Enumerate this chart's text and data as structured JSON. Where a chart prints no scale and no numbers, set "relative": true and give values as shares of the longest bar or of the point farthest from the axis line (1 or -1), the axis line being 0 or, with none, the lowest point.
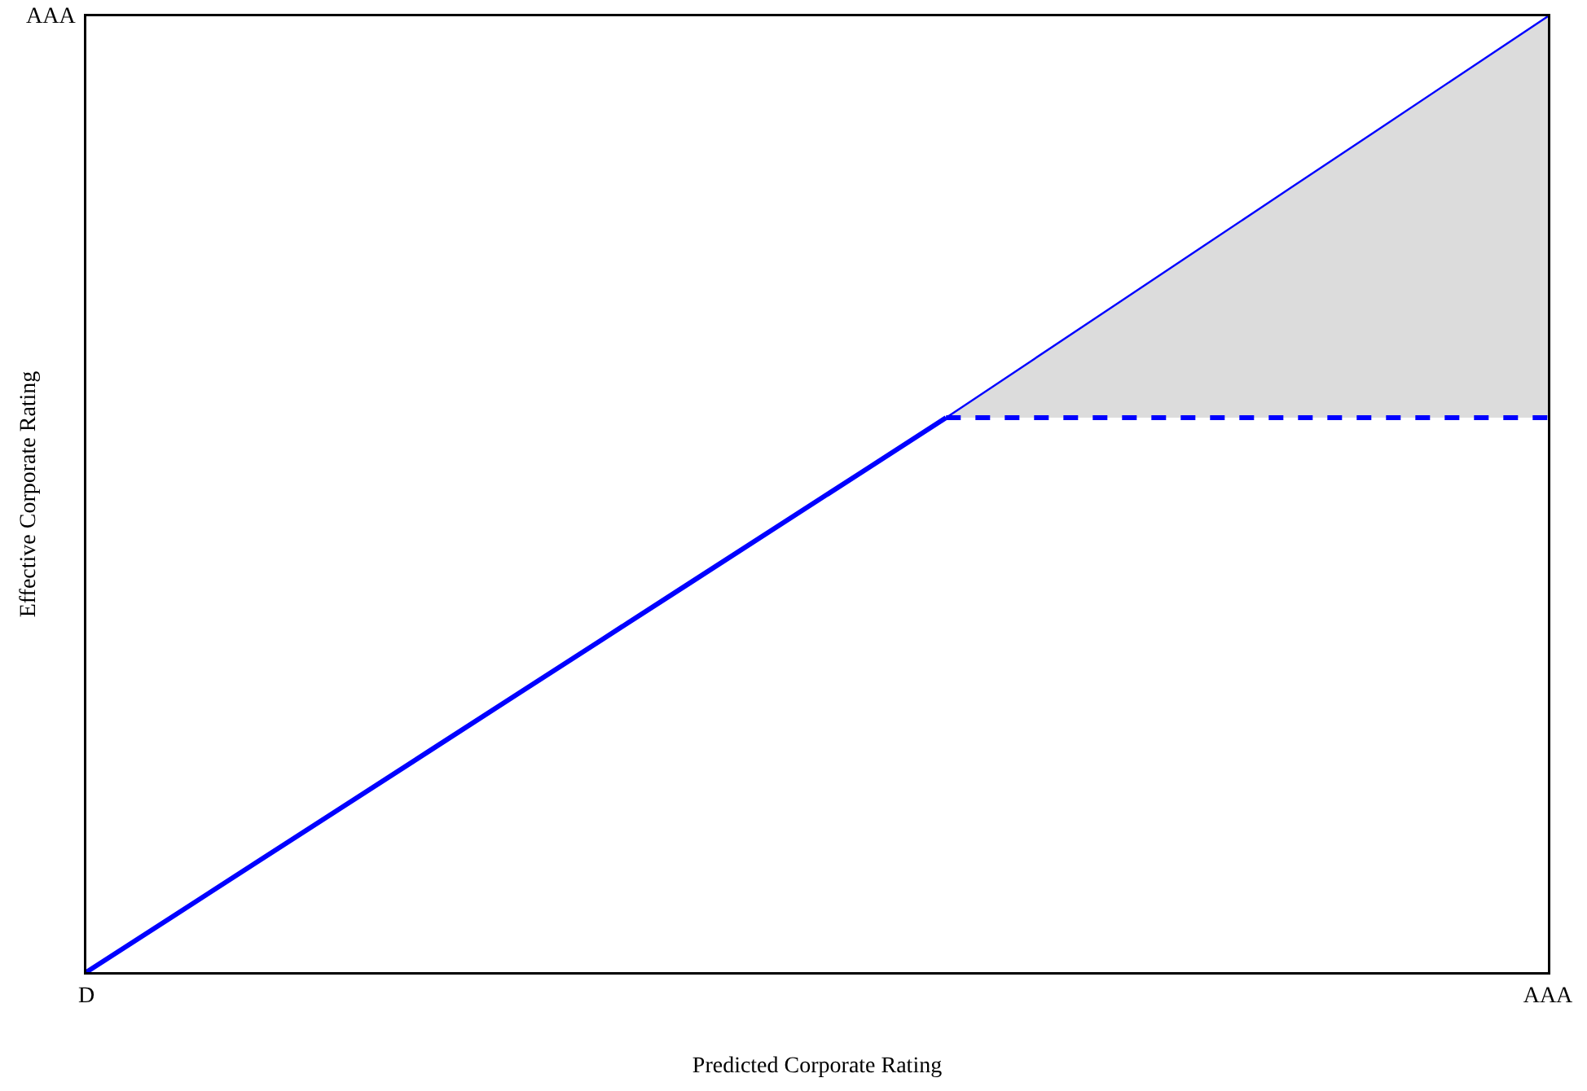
{
  "chart_data": {
    "type": "line",
    "relative": true,
    "xlabel": "Predicted Corporate Rating",
    "ylabel": "Effective Corporate Rating",
    "categories": [
      "D",
      null,
      null,
      null,
      null,
      null,
      null,
      null,
      null,
      null,
      null,
      null,
      null,
      null,
      null,
      null,
      null,
      "AAA"
    ],
    "annotations": [
      "AAA"
    ],
    "marker": "none",
    "series": [
      {
        "color": "#0000ff",
        "values": [
          0,
          0.058,
          0.116,
          0.174,
          0.232,
          0.29,
          0.348,
          0.406,
          0.464,
          0.522,
          0.58,
          null,
          null,
          null,
          null,
          null,
          null,
          null
        ],
        "line_style": "solid"
      },
      {
        "color": "#0000ff",
        "values": [
          null,
          null,
          null,
          null,
          null,
          null,
          null,
          null,
          null,
          null,
          0.58,
          0.64,
          0.7,
          0.76,
          0.82,
          0.88,
          0.94,
          1
        ],
        "lower": [
          null,
          null,
          null,
          null,
          null,
          null,
          null,
          null,
          null,
          null,
          0.58,
          0.58,
          0.58,
          0.58,
          0.58,
          0.58,
          0.58,
          0.58
        ],
        "upper": [
          null,
          null,
          null,
          null,
          null,
          null,
          null,
          null,
          null,
          null,
          0.58,
          0.64,
          0.7,
          0.76,
          0.82,
          0.88,
          0.94,
          1
        ],
        "line_style": "solid"
      },
      {
        "color": "#0000ff",
        "values": [
          null,
          null,
          null,
          null,
          null,
          null,
          null,
          null,
          null,
          null,
          0.58,
          0.58,
          0.58,
          0.58,
          0.58,
          0.58,
          0.58,
          0.58
        ],
        "line_style": "dashed"
      }
    ]
  }
}
